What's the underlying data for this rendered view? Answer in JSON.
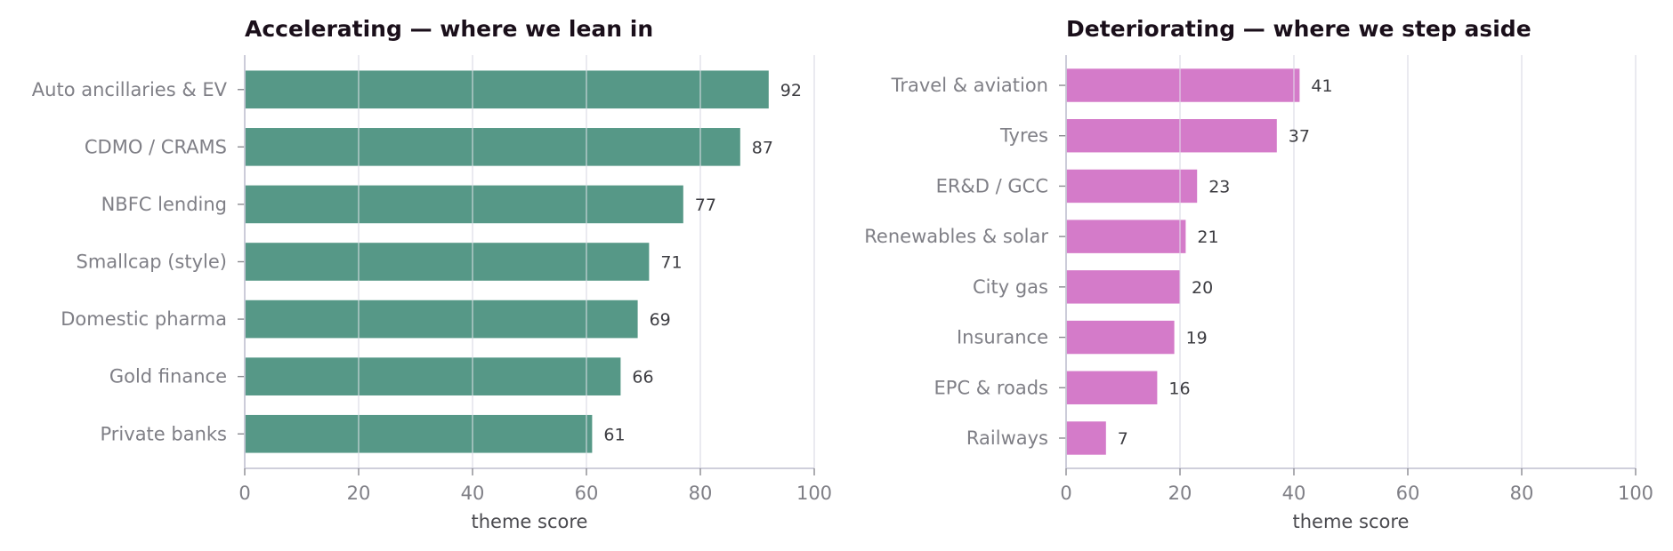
{
  "chart_data": [
    {
      "type": "bar",
      "orientation": "horizontal",
      "title": "Accelerating — where we lean in",
      "xlabel": "theme score",
      "ylabel": "",
      "xlim": [
        0,
        100
      ],
      "xticks": [
        0,
        20,
        40,
        60,
        80,
        100
      ],
      "grid": "vertical",
      "color": "#569887",
      "categories": [
        "Auto ancillaries & EV",
        "CDMO / CRAMS",
        "NBFC lending",
        "Smallcap (style)",
        "Domestic pharma",
        "Gold finance",
        "Private banks"
      ],
      "values": [
        92,
        87,
        77,
        71,
        69,
        66,
        61
      ]
    },
    {
      "type": "bar",
      "orientation": "horizontal",
      "title": "Deteriorating — where we step aside",
      "xlabel": "theme score",
      "ylabel": "",
      "xlim": [
        0,
        100
      ],
      "xticks": [
        0,
        20,
        40,
        60,
        80,
        100
      ],
      "grid": "vertical",
      "color": "#d47bc9",
      "categories": [
        "Travel & aviation",
        "Tyres",
        "ER&D / GCC",
        "Renewables & solar",
        "City gas",
        "Insurance",
        "EPC & roads",
        "Railways"
      ],
      "values": [
        41,
        37,
        23,
        21,
        20,
        19,
        16,
        7
      ]
    }
  ]
}
